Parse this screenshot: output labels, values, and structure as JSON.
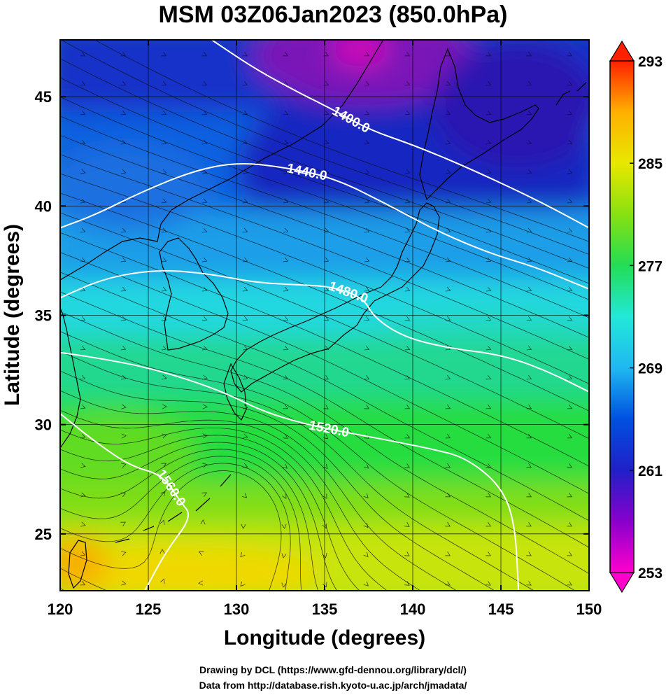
{
  "title": "MSM 03Z06Jan2023 (850.0hPa)",
  "x_axis": {
    "label": "Longitude (degrees)",
    "min": 120,
    "max": 150,
    "ticks": [
      {
        "value": 120,
        "label": "120"
      },
      {
        "value": 125,
        "label": "125"
      },
      {
        "value": 130,
        "label": "130"
      },
      {
        "value": 135,
        "label": "135"
      },
      {
        "value": 140,
        "label": "140"
      },
      {
        "value": 145,
        "label": "145"
      },
      {
        "value": 150,
        "label": "150"
      }
    ]
  },
  "y_axis": {
    "label": "Latitude  (degrees)",
    "min": 22.4,
    "max": 47.6,
    "ticks": [
      {
        "value": 25,
        "label": "25"
      },
      {
        "value": 30,
        "label": "30"
      },
      {
        "value": 35,
        "label": "35"
      },
      {
        "value": 40,
        "label": "40"
      },
      {
        "value": 45,
        "label": "45"
      }
    ]
  },
  "colorbar": {
    "min": 253,
    "max": 293,
    "ticks": [
      {
        "value": 253,
        "label": "253"
      },
      {
        "value": 261,
        "label": "261"
      },
      {
        "value": 269,
        "label": "269"
      },
      {
        "value": 277,
        "label": "277"
      },
      {
        "value": 285,
        "label": "285"
      },
      {
        "value": 293,
        "label": "293"
      }
    ],
    "colors": [
      "#ff00cc",
      "#8800cc",
      "#2020c8",
      "#0050e0",
      "#1fb8f0",
      "#22e8d8",
      "#22dd55",
      "#88e010",
      "#e8e800",
      "#ffb000",
      "#ff2000"
    ]
  },
  "contours": [
    {
      "value": 1400,
      "label": "1400.0",
      "points": [
        [
          128.6,
          47.6
        ],
        [
          131.0,
          46.3
        ],
        [
          133.5,
          45.2
        ],
        [
          135.5,
          44.4
        ],
        [
          137.5,
          43.5
        ],
        [
          140.0,
          42.8
        ],
        [
          143.0,
          41.8
        ],
        [
          147.0,
          40.3
        ],
        [
          150.0,
          39.0
        ]
      ]
    },
    {
      "value": 1440,
      "label": "1440.0",
      "points": [
        [
          120.0,
          39.0
        ],
        [
          122.0,
          39.6
        ],
        [
          124.5,
          40.6
        ],
        [
          127.5,
          41.6
        ],
        [
          130.0,
          42.0
        ],
        [
          132.5,
          41.8
        ],
        [
          135.5,
          41.3
        ],
        [
          138.5,
          40.1
        ],
        [
          141.5,
          38.8
        ],
        [
          144.5,
          37.8
        ],
        [
          147.0,
          37.2
        ],
        [
          150.0,
          36.2
        ]
      ]
    },
    {
      "value": 1480,
      "label": "1480.0",
      "points": [
        [
          120.0,
          35.8
        ],
        [
          122.5,
          36.7
        ],
        [
          125.5,
          37.1
        ],
        [
          128.5,
          36.9
        ],
        [
          131.0,
          36.5
        ],
        [
          133.5,
          36.4
        ],
        [
          135.5,
          36.3
        ],
        [
          137.2,
          35.8
        ],
        [
          137.8,
          34.9
        ],
        [
          139.5,
          34.0
        ],
        [
          142.0,
          33.5
        ],
        [
          145.0,
          33.2
        ],
        [
          147.5,
          32.5
        ],
        [
          150.0,
          31.5
        ]
      ]
    },
    {
      "value": 1520,
      "label": "1520.0",
      "points": [
        [
          120.0,
          33.3
        ],
        [
          122.5,
          33.0
        ],
        [
          125.0,
          32.6
        ],
        [
          127.5,
          32.0
        ],
        [
          129.5,
          31.4
        ],
        [
          131.5,
          30.6
        ],
        [
          134.0,
          30.0
        ],
        [
          136.5,
          29.6
        ],
        [
          138.5,
          29.3
        ],
        [
          141.0,
          28.9
        ],
        [
          143.0,
          28.5
        ],
        [
          145.0,
          27.2
        ],
        [
          145.8,
          25.5
        ],
        [
          146.0,
          22.4
        ]
      ]
    },
    {
      "value": 1560,
      "label": "1560.0",
      "points": [
        [
          120.0,
          30.5
        ],
        [
          122.0,
          29.2
        ],
        [
          124.0,
          28.1
        ],
        [
          125.8,
          27.7
        ],
        [
          126.8,
          26.5
        ],
        [
          127.5,
          25.8
        ],
        [
          126.0,
          24.2
        ],
        [
          124.8,
          22.4
        ]
      ]
    }
  ],
  "credits": [
    "Drawing by DCL (https://www.gfd-dennou.org/library/dcl/)",
    "Data from http://database.rish.kyoto-u.ac.jp/arch/jmadata/"
  ]
}
